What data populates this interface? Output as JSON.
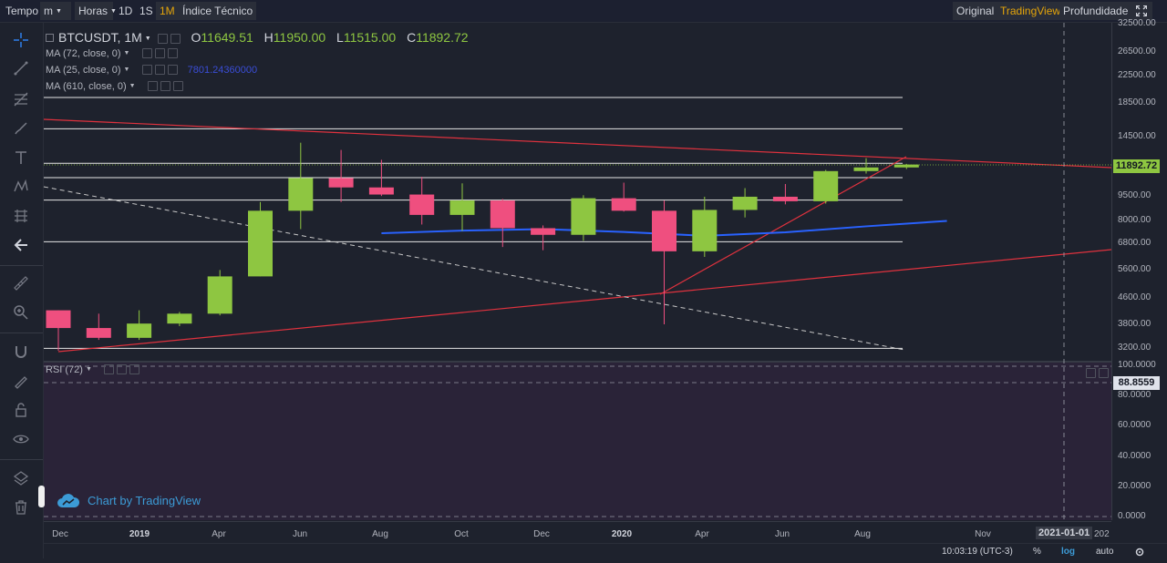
{
  "toolbar": {
    "items": [
      {
        "label": "Tempo",
        "dropdown": false
      },
      {
        "label": "m",
        "dropdown": true
      },
      {
        "label": "Horas",
        "dropdown": true
      },
      {
        "label": "1D",
        "dropdown": false
      },
      {
        "label": "1S",
        "dropdown": false
      },
      {
        "label": "1M",
        "dropdown": false,
        "active": true
      },
      {
        "label": "Índice Técnico",
        "dropdown": false
      }
    ],
    "views": [
      "Original",
      "TradingView",
      "Profundidade"
    ],
    "active_view": "TradingView"
  },
  "legend": {
    "symbol": "BTCUSDT, 1M",
    "open_label": "O",
    "open": "11649.51",
    "high_label": "H",
    "high": "11950.00",
    "low_label": "L",
    "low": "11515.00",
    "close_label": "C",
    "close": "11892.72",
    "indicators": [
      {
        "label": "MA (72, close, 0)",
        "value": ""
      },
      {
        "label": "MA (25, close, 0)",
        "value": "7801.24360000"
      },
      {
        "label": "MA (610, close, 0)",
        "value": ""
      }
    ],
    "rsi_label": "RSI (72)"
  },
  "watermark": {
    "text": "Chart by TradingView"
  },
  "price_axis": {
    "labels": [
      "32500.00",
      "26500.00",
      "22500.00",
      "18500.00",
      "14500.00",
      "9500.00",
      "8000.00",
      "6800.00",
      "5600.00",
      "4600.00",
      "3800.00",
      "3200.00"
    ],
    "last_price": "11892.72",
    "rsi_labels": [
      "100.0000",
      "80.0000",
      "60.0000",
      "40.0000",
      "20.0000",
      "0.0000"
    ],
    "rsi_last": "88.8559"
  },
  "time_axis": {
    "labels": [
      "Dec",
      "2019",
      "Apr",
      "Jun",
      "Aug",
      "Oct",
      "Dec",
      "2020",
      "Apr",
      "Jun",
      "Aug",
      "Nov"
    ],
    "bold_labels": [
      "2019",
      "2020"
    ],
    "crosshair_label": "2021-01-01",
    "partial_label": "202"
  },
  "bottom_bar": {
    "time": "10:03:19 (UTC-3)",
    "percent": "%",
    "log": "log",
    "auto": "auto"
  },
  "colors": {
    "up": "#8ec641",
    "down": "#ef4f7f",
    "ma25": "#2962ff",
    "trend": "#e0323e",
    "background": "#1e222d",
    "rsi_background": "#2a2338",
    "accent": "#e5a50a",
    "watermark": "#3c9bd6"
  },
  "chart_data": {
    "type": "candlestick",
    "timeframe": "1M",
    "y_scale": "log",
    "ylim": [
      3000,
      33500
    ],
    "candles": [
      {
        "month": "2018-12",
        "open": 4200,
        "high": 4200,
        "low": 3150,
        "close": 3700
      },
      {
        "month": "2019-01",
        "open": 3700,
        "high": 4100,
        "low": 3400,
        "close": 3450
      },
      {
        "month": "2019-02",
        "open": 3450,
        "high": 4200,
        "low": 3400,
        "close": 3820
      },
      {
        "month": "2019-03",
        "open": 3820,
        "high": 4150,
        "low": 3750,
        "close": 4100
      },
      {
        "month": "2019-04",
        "open": 4100,
        "high": 5600,
        "low": 4050,
        "close": 5350
      },
      {
        "month": "2019-05",
        "open": 5350,
        "high": 9100,
        "low": 5350,
        "close": 8550
      },
      {
        "month": "2019-06",
        "open": 8550,
        "high": 13900,
        "low": 7500,
        "close": 10800
      },
      {
        "month": "2019-07",
        "open": 10800,
        "high": 13200,
        "low": 9100,
        "close": 10100
      },
      {
        "month": "2019-08",
        "open": 10100,
        "high": 12300,
        "low": 9500,
        "close": 9600
      },
      {
        "month": "2019-09",
        "open": 9600,
        "high": 10900,
        "low": 7750,
        "close": 8300
      },
      {
        "month": "2019-10",
        "open": 8300,
        "high": 10400,
        "low": 7400,
        "close": 9200
      },
      {
        "month": "2019-11",
        "open": 9200,
        "high": 9300,
        "low": 6600,
        "close": 7550
      },
      {
        "month": "2019-12",
        "open": 7550,
        "high": 7700,
        "low": 6450,
        "close": 7200
      },
      {
        "month": "2020-01",
        "open": 7200,
        "high": 9550,
        "low": 6900,
        "close": 9350
      },
      {
        "month": "2020-02",
        "open": 9350,
        "high": 10450,
        "low": 8500,
        "close": 8550
      },
      {
        "month": "2020-03",
        "open": 8550,
        "high": 9200,
        "low": 3800,
        "close": 6400
      },
      {
        "month": "2020-04",
        "open": 6400,
        "high": 9450,
        "low": 6150,
        "close": 8600
      },
      {
        "month": "2020-05",
        "open": 8600,
        "high": 10050,
        "low": 8150,
        "close": 9450
      },
      {
        "month": "2020-06",
        "open": 9450,
        "high": 10350,
        "low": 8950,
        "close": 9150
      },
      {
        "month": "2020-07",
        "open": 9150,
        "high": 11450,
        "low": 9000,
        "close": 11350
      },
      {
        "month": "2020-08",
        "open": 11350,
        "high": 12450,
        "low": 11150,
        "close": 11650
      },
      {
        "month": "2020-09",
        "open": 11649.51,
        "high": 11950,
        "low": 11515,
        "close": 11892.72
      }
    ],
    "ma25": [
      {
        "month": "2019-08",
        "value": 7280
      },
      {
        "month": "2019-10",
        "value": 7420
      },
      {
        "month": "2019-12",
        "value": 7500
      },
      {
        "month": "2020-02",
        "value": 7350
      },
      {
        "month": "2020-04",
        "value": 7150
      },
      {
        "month": "2020-06",
        "value": 7330
      },
      {
        "month": "2020-08",
        "value": 7650
      },
      {
        "month": "2020-10",
        "value": 7950
      }
    ],
    "horizontal_levels": [
      3200,
      6850,
      9230,
      10830,
      12000,
      15350,
      19200
    ],
    "rsi": {
      "value": 88.8559,
      "levels": [
        100,
        88.8559,
        0
      ]
    }
  }
}
